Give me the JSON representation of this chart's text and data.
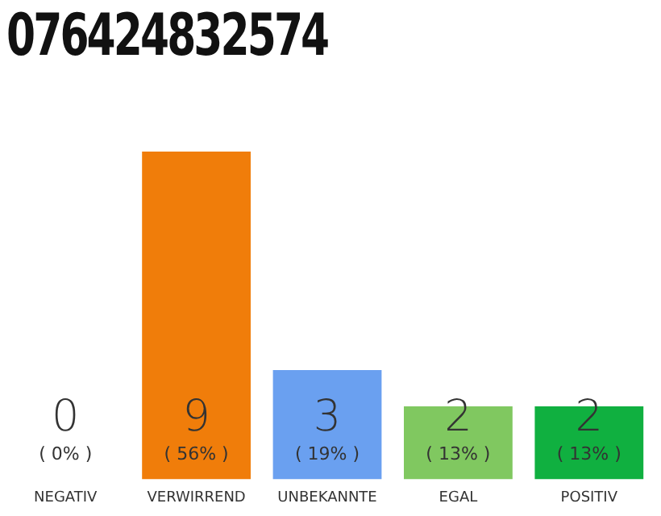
{
  "chart_data": {
    "type": "bar",
    "title": "076424832574",
    "categories": [
      "NEGATIV",
      "VERWIRREND",
      "UNBEKANNTE",
      "EGAL",
      "POSITIV"
    ],
    "values": [
      0,
      9,
      3,
      2,
      2
    ],
    "colors": [
      "#9a9a9a",
      "#f07d0a",
      "#6aa0f0",
      "#80c860",
      "#10b040"
    ],
    "data_labels": true,
    "value_labels": [
      "0\n( 0% )",
      "9\n( 56% )",
      "3\n( 19% )",
      "2\n( 13% )",
      "2\n( 13% )"
    ],
    "grid": false,
    "legend": false,
    "tick_labels": "x"
  }
}
